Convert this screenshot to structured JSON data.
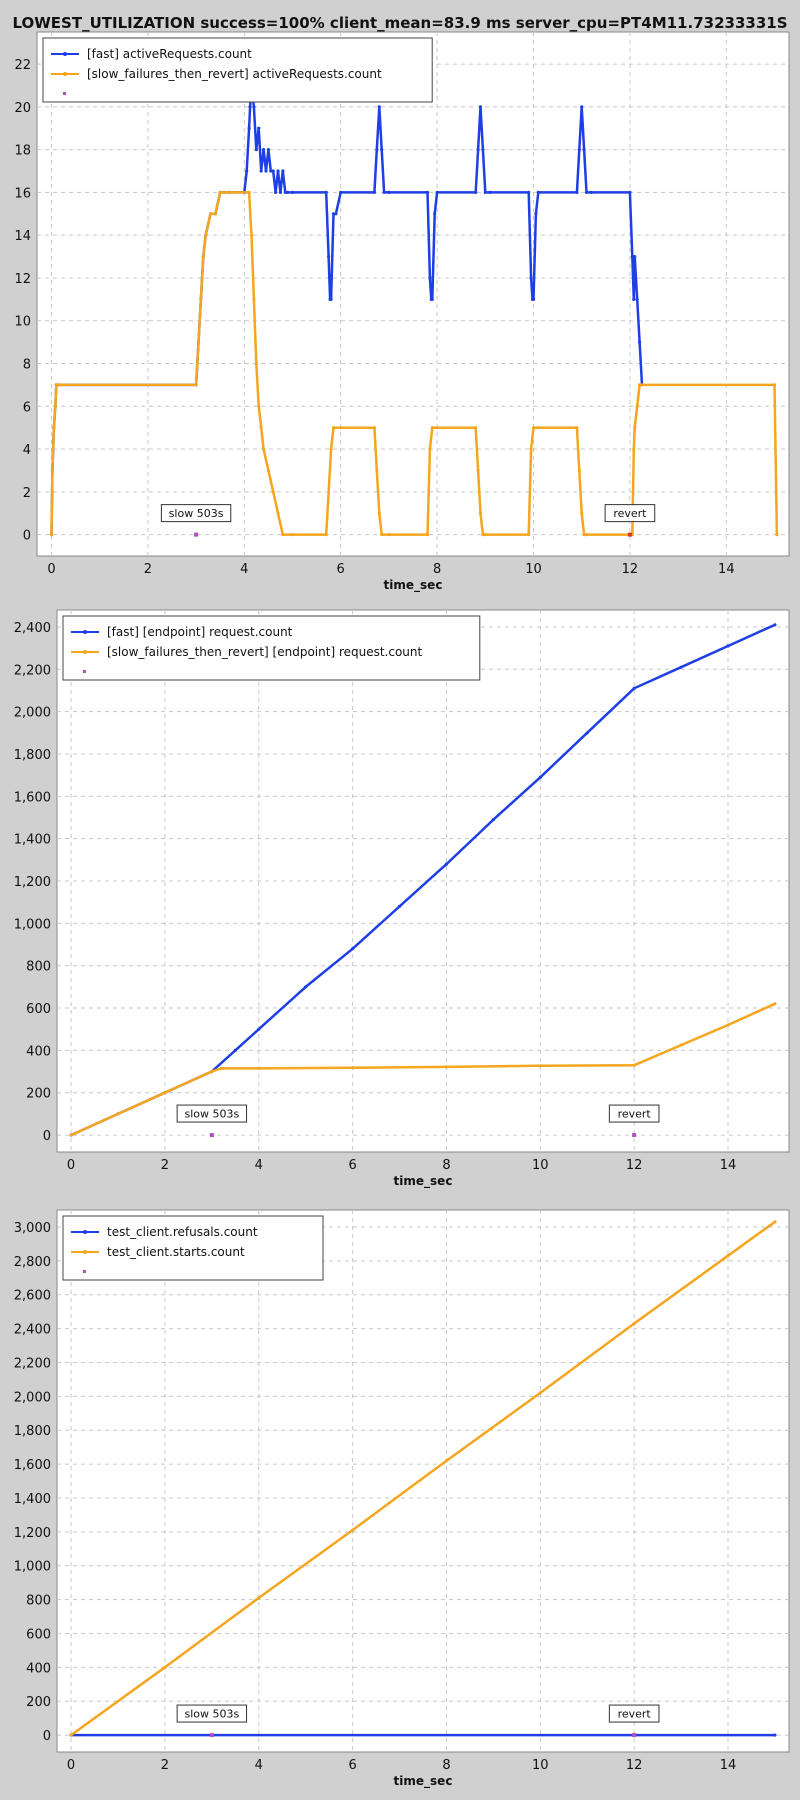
{
  "title": "LOWEST_UTILIZATION success=100% client_mean=83.9 ms server_cpu=PT4M11.73233331S",
  "chart_data": [
    {
      "type": "line",
      "xlabel": "time_sec",
      "ylabel": "",
      "xlim": [
        -0.3,
        15.3
      ],
      "ylim": [
        -1,
        23.5
      ],
      "xticks": [
        0,
        2,
        4,
        6,
        8,
        10,
        12,
        14
      ],
      "yticks": [
        0,
        2,
        4,
        6,
        8,
        10,
        12,
        14,
        16,
        18,
        20,
        22
      ],
      "grid": true,
      "legend": "top-left",
      "series": [
        {
          "name": "[fast] activeRequests.count",
          "color": "#1f3fe6",
          "x": [
            0.0,
            0.02,
            0.05,
            0.08,
            0.1,
            0.15,
            3.0,
            3.05,
            3.1,
            3.15,
            3.2,
            3.3,
            3.4,
            3.5,
            3.6,
            3.7,
            4.0,
            4.05,
            4.1,
            4.12,
            4.15,
            4.2,
            4.25,
            4.3,
            4.35,
            4.4,
            4.45,
            4.5,
            4.55,
            4.6,
            4.65,
            4.7,
            4.75,
            4.8,
            4.85,
            4.9,
            5.0,
            5.7,
            5.75,
            5.78,
            5.8,
            5.85,
            5.9,
            6.0,
            6.7,
            6.75,
            6.8,
            6.85,
            6.9,
            7.0,
            7.8,
            7.85,
            7.88,
            7.9,
            7.95,
            8.0,
            8.8,
            8.85,
            8.9,
            8.95,
            9.0,
            9.1,
            9.9,
            9.95,
            9.98,
            10.0,
            10.05,
            10.1,
            10.9,
            10.95,
            11.0,
            11.05,
            11.1,
            11.2,
            12.0,
            12.05,
            12.08,
            12.1,
            12.15,
            12.2,
            12.25
          ],
          "y": [
            0,
            3,
            5,
            6,
            7,
            7,
            7,
            9,
            11,
            13,
            14,
            15,
            15,
            16,
            16,
            16,
            16,
            17,
            19,
            20,
            21,
            20,
            18,
            19,
            17,
            18,
            17,
            18,
            17,
            17,
            16,
            17,
            16,
            17,
            16,
            16,
            16,
            16,
            13,
            11,
            11,
            15,
            15,
            16,
            16,
            18,
            20,
            18,
            16,
            16,
            16,
            12,
            11,
            11,
            15,
            16,
            16,
            18,
            20,
            18,
            16,
            16,
            16,
            12,
            11,
            11,
            15,
            16,
            16,
            18,
            20,
            18,
            16,
            16,
            16,
            13,
            11,
            13,
            11,
            9,
            7
          ]
        },
        {
          "name": "[slow_failures_then_revert] activeRequests.count",
          "color": "#f5a51e",
          "x": [
            0.0,
            0.02,
            0.05,
            0.08,
            0.1,
            0.15,
            3.0,
            3.05,
            3.1,
            3.15,
            3.2,
            3.3,
            3.4,
            3.5,
            3.6,
            3.7,
            4.1,
            4.15,
            4.2,
            4.25,
            4.3,
            4.35,
            4.4,
            4.5,
            4.6,
            4.7,
            4.8,
            5.0,
            5.7,
            5.8,
            5.85,
            6.0,
            6.7,
            6.75,
            6.8,
            6.85,
            7.0,
            7.8,
            7.85,
            7.9,
            8.0,
            8.8,
            8.85,
            8.9,
            8.95,
            9.0,
            9.9,
            9.95,
            10.0,
            10.1,
            10.9,
            10.95,
            11.0,
            11.05,
            11.1,
            12.05,
            12.08,
            12.1,
            12.15,
            12.2,
            12.25,
            15.0,
            15.05
          ],
          "y": [
            0,
            3,
            5,
            6,
            7,
            7,
            7,
            9,
            11,
            13,
            14,
            15,
            15,
            16,
            16,
            16,
            16,
            14,
            11,
            8,
            6,
            5,
            4,
            3,
            2,
            1,
            0,
            0,
            0,
            4,
            5,
            5,
            5,
            3,
            1,
            0,
            0,
            0,
            4,
            5,
            5,
            5,
            3,
            1,
            0,
            0,
            0,
            4,
            5,
            5,
            5,
            3,
            1,
            0,
            0,
            0,
            4,
            5,
            6,
            7,
            7,
            7,
            0
          ]
        }
      ],
      "annotations": [
        {
          "label": "slow 503s",
          "x": 3.0,
          "y": 0,
          "marker_color": "#b050c0"
        },
        {
          "label": "revert",
          "x": 12.0,
          "y": 0,
          "marker_color": "#e03030"
        }
      ],
      "legend_marker_color": "#b050c0"
    },
    {
      "type": "line",
      "xlabel": "time_sec",
      "ylabel": "",
      "xlim": [
        -0.3,
        15.3
      ],
      "ylim": [
        -80,
        2480
      ],
      "xticks": [
        0,
        2,
        4,
        6,
        8,
        10,
        12,
        14
      ],
      "yticks": [
        0,
        200,
        400,
        600,
        800,
        1000,
        1200,
        1400,
        1600,
        1800,
        2000,
        2200,
        2400
      ],
      "ytick_labels": [
        "0",
        "200",
        "400",
        "600",
        "800",
        "1,000",
        "1,200",
        "1,400",
        "1,600",
        "1,800",
        "2,000",
        "2,200",
        "2,400"
      ],
      "grid": true,
      "legend": "top-left",
      "series": [
        {
          "name": "[fast] [endpoint] request.count",
          "color": "#1f3fe6",
          "x": [
            0,
            1,
            2,
            3,
            3.5,
            4,
            5,
            6,
            7,
            8,
            9,
            10,
            11,
            12,
            13,
            14,
            15
          ],
          "y": [
            0,
            100,
            200,
            300,
            400,
            500,
            700,
            880,
            1080,
            1280,
            1490,
            1690,
            1900,
            2110,
            2210,
            2310,
            2410
          ]
        },
        {
          "name": "[slow_failures_then_revert] [endpoint] request.count",
          "color": "#f5a51e",
          "x": [
            0,
            1,
            2,
            3,
            3.2,
            4,
            6,
            8,
            10,
            12,
            13,
            14,
            15
          ],
          "y": [
            0,
            100,
            200,
            300,
            315,
            315,
            318,
            322,
            327,
            330,
            425,
            520,
            620
          ]
        }
      ],
      "annotations": [
        {
          "label": "slow 503s",
          "x": 3.0,
          "y": 0,
          "marker_color": "#b050c0"
        },
        {
          "label": "revert",
          "x": 12.0,
          "y": 0,
          "marker_color": "#b050c0"
        }
      ],
      "legend_marker_color": "#b050c0"
    },
    {
      "type": "line",
      "xlabel": "time_sec",
      "ylabel": "",
      "xlim": [
        -0.3,
        15.3
      ],
      "ylim": [
        -100,
        3100
      ],
      "xticks": [
        0,
        2,
        4,
        6,
        8,
        10,
        12,
        14
      ],
      "yticks": [
        0,
        200,
        400,
        600,
        800,
        1000,
        1200,
        1400,
        1600,
        1800,
        2000,
        2200,
        2400,
        2600,
        2800,
        3000
      ],
      "ytick_labels": [
        "0",
        "200",
        "400",
        "600",
        "800",
        "1,000",
        "1,200",
        "1,400",
        "1,600",
        "1,800",
        "2,000",
        "2,200",
        "2,400",
        "2,600",
        "2,800",
        "3,000"
      ],
      "grid": true,
      "legend": "top-left",
      "series": [
        {
          "name": "test_client.refusals.count",
          "color": "#1f3fe6",
          "x": [
            0,
            15
          ],
          "y": [
            0,
            0
          ]
        },
        {
          "name": "test_client.starts.count",
          "color": "#f5a51e",
          "x": [
            0,
            2,
            4,
            6,
            8,
            10,
            12,
            14,
            15
          ],
          "y": [
            0,
            400,
            810,
            1210,
            1620,
            2020,
            2430,
            2830,
            3030
          ]
        }
      ],
      "annotations": [
        {
          "label": "slow 503s",
          "x": 3.0,
          "y": 0,
          "marker_color": "#b050c0"
        },
        {
          "label": "revert",
          "x": 12.0,
          "y": 0,
          "marker_color": "#b050c0"
        }
      ],
      "legend_marker_color": "#b050c0"
    }
  ]
}
